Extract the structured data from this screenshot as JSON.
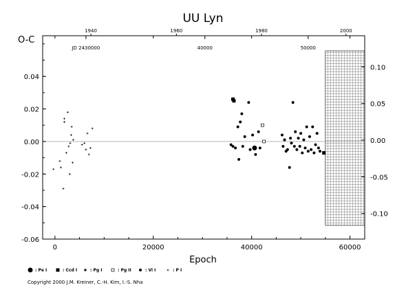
{
  "chart_data": {
    "type": "scatter",
    "title": "UU Lyn",
    "xlabel": "Epoch",
    "ylabel": "O-C",
    "xlim": [
      -2500,
      63000
    ],
    "ylim": [
      -0.06,
      0.065
    ],
    "y2lim": [
      -0.135,
      0.1425
    ],
    "x_ticks": [
      0,
      20000,
      40000,
      60000
    ],
    "y_ticks": [
      -0.06,
      -0.04,
      -0.02,
      0.0,
      0.02,
      0.04
    ],
    "y2_ticks": [
      -0.1,
      -0.05,
      0.0,
      0.05,
      0.1
    ],
    "top_year_ticks": [
      {
        "label": "1940",
        "epoch": 7300
      },
      {
        "label": "1960",
        "epoch": 24700
      },
      {
        "label": "1980",
        "epoch": 42000
      },
      {
        "label": "2000",
        "epoch": 59200
      }
    ],
    "jd_ticks": [
      {
        "label": "JD 2430000",
        "epoch": 6300
      },
      {
        "label": "40000",
        "epoch": 30500
      },
      {
        "label": "50000",
        "epoch": 51500
      }
    ],
    "hatched_region": {
      "x_from": 55000,
      "x_to": 63000
    },
    "legend": [
      {
        "symbol": "large-dot",
        "label": ": Pe I"
      },
      {
        "symbol": "square",
        "label": ": Ccd I"
      },
      {
        "symbol": "small-square",
        "label": ": Pg I"
      },
      {
        "symbol": "open-square",
        "label": ": Pg II"
      },
      {
        "symbol": "dot",
        "label": ": Vi I"
      },
      {
        "symbol": "plus",
        "label": ": P I"
      }
    ],
    "series": [
      {
        "name": "P I",
        "marker": "plus",
        "points": [
          [
            -300,
            -0.017
          ],
          [
            1000,
            -0.012
          ],
          [
            1200,
            -0.016
          ],
          [
            1700,
            -0.029
          ],
          [
            1900,
            0.014
          ],
          [
            1900,
            0.012
          ],
          [
            2300,
            -0.007
          ],
          [
            2600,
            0.018
          ],
          [
            2800,
            -0.003
          ],
          [
            3000,
            -0.02
          ],
          [
            3100,
            -0.001
          ],
          [
            3300,
            0.004
          ],
          [
            3400,
            0.009
          ],
          [
            3600,
            -0.013
          ],
          [
            3700,
            0.001
          ],
          [
            5500,
            -0.002
          ],
          [
            6000,
            -0.001
          ],
          [
            6300,
            -0.005
          ],
          [
            6600,
            0.005
          ],
          [
            6900,
            -0.008
          ],
          [
            7200,
            -0.004
          ],
          [
            7600,
            0.008
          ]
        ]
      },
      {
        "name": "Vi I",
        "marker": "dot",
        "points": [
          [
            35800,
            -0.002
          ],
          [
            36200,
            -0.003
          ],
          [
            36700,
            -0.004
          ],
          [
            37200,
            0.009
          ],
          [
            37400,
            -0.011
          ],
          [
            37700,
            0.012
          ],
          [
            38000,
            0.017
          ],
          [
            38200,
            -0.003
          ],
          [
            38600,
            0.003
          ],
          [
            39400,
            0.024
          ],
          [
            39700,
            -0.005
          ],
          [
            40200,
            0.004
          ],
          [
            40800,
            -0.008
          ],
          [
            41400,
            0.006
          ],
          [
            41700,
            -0.004
          ],
          [
            46200,
            0.004
          ],
          [
            46400,
            -0.003
          ],
          [
            46700,
            0.001
          ],
          [
            47000,
            -0.006
          ],
          [
            47300,
            -0.005
          ],
          [
            47700,
            -0.016
          ],
          [
            47900,
            0.002
          ],
          [
            48100,
            -0.001
          ],
          [
            48400,
            0.024
          ],
          [
            48700,
            -0.003
          ],
          [
            48900,
            0.006
          ],
          [
            49200,
            -0.005
          ],
          [
            49500,
            0.002
          ],
          [
            49800,
            -0.003
          ],
          [
            50000,
            0.005
          ],
          [
            50300,
            -0.007
          ],
          [
            50600,
            0.001
          ],
          [
            50900,
            -0.004
          ],
          [
            51200,
            0.009
          ],
          [
            51500,
            -0.006
          ],
          [
            51800,
            0.003
          ],
          [
            52100,
            -0.005
          ],
          [
            52400,
            0.009
          ],
          [
            52700,
            -0.007
          ],
          [
            53000,
            -0.002
          ],
          [
            53300,
            0.005
          ],
          [
            53600,
            -0.004
          ],
          [
            53900,
            -0.006
          ]
        ]
      },
      {
        "name": "Pe I",
        "marker": "large-dot",
        "points": [
          [
            40600,
            -0.004
          ]
        ]
      },
      {
        "name": "Ccd I",
        "marker": "square",
        "points": [
          [
            36200,
            0.026
          ],
          [
            36400,
            0.025
          ],
          [
            54700,
            -0.007
          ]
        ]
      },
      {
        "name": "Pg II",
        "marker": "open-square",
        "points": [
          [
            42200,
            0.01
          ],
          [
            42500,
            0.0
          ]
        ]
      }
    ]
  },
  "footer": {
    "copyright": "Copyright 2000 J.M. Kreiner, C.-H. Kim, I.-S. Nha"
  }
}
